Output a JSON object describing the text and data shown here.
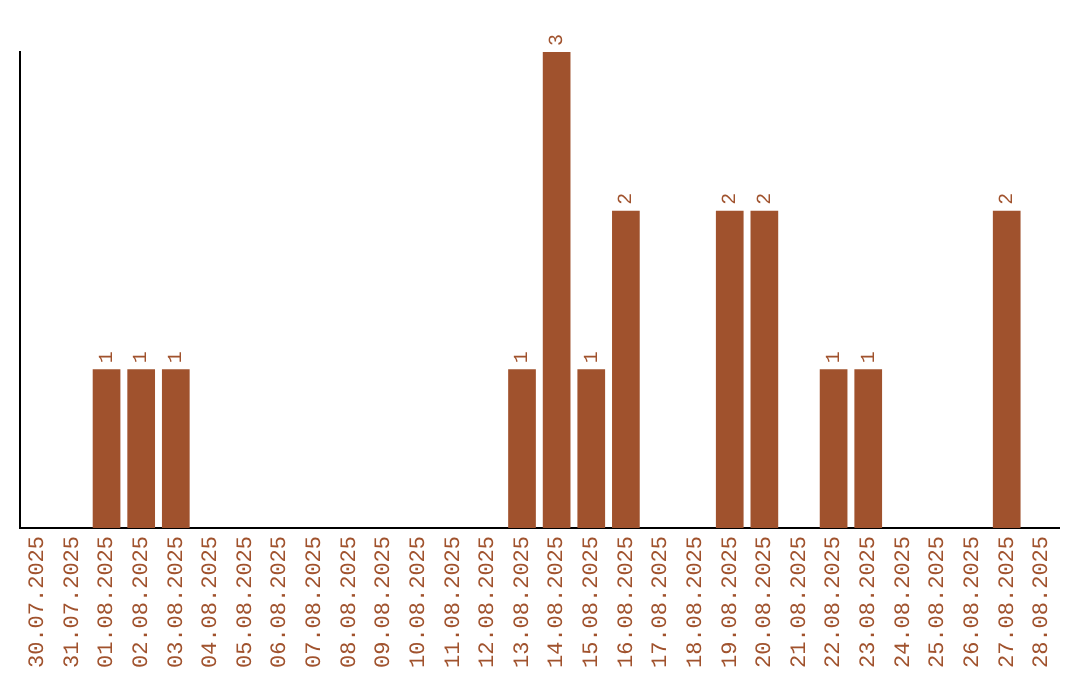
{
  "chart_data": {
    "type": "bar",
    "categories": [
      "30.07.2025",
      "31.07.2025",
      "01.08.2025",
      "02.08.2025",
      "03.08.2025",
      "04.08.2025",
      "05.08.2025",
      "06.08.2025",
      "07.08.2025",
      "08.08.2025",
      "09.08.2025",
      "10.08.2025",
      "11.08.2025",
      "12.08.2025",
      "13.08.2025",
      "14.08.2025",
      "15.08.2025",
      "16.08.2025",
      "17.08.2025",
      "18.08.2025",
      "19.08.2025",
      "20.08.2025",
      "21.08.2025",
      "22.08.2025",
      "23.08.2025",
      "24.08.2025",
      "25.08.2025",
      "26.08.2025",
      "27.08.2025",
      "28.08.2025"
    ],
    "values": [
      0,
      0,
      1,
      1,
      1,
      0,
      0,
      0,
      0,
      0,
      0,
      0,
      0,
      0,
      1,
      3,
      1,
      2,
      0,
      0,
      2,
      2,
      0,
      1,
      1,
      0,
      0,
      0,
      2,
      0
    ],
    "value_labels": [
      null,
      null,
      "1",
      "1",
      "1",
      null,
      null,
      null,
      null,
      null,
      null,
      null,
      null,
      null,
      "1",
      "3",
      "1",
      "2",
      null,
      null,
      "2",
      "2",
      null,
      "1",
      "1",
      null,
      null,
      null,
      "2",
      null
    ],
    "color": "#a0522d",
    "tick_labels": "x",
    "grid": false,
    "legend": false
  }
}
